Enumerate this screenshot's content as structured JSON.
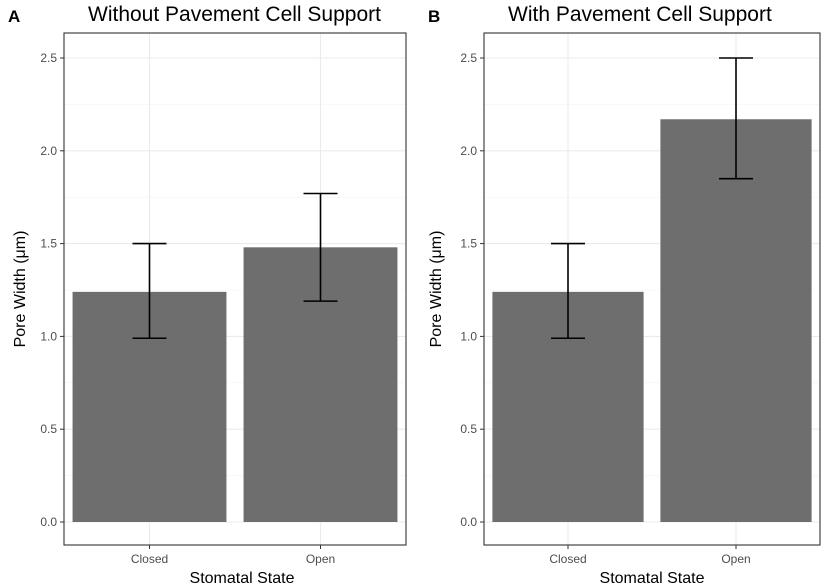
{
  "chart_data": [
    {
      "type": "bar",
      "panel": "A",
      "title": "Without Pavement Cell Support",
      "xlabel": "Stomatal State",
      "ylabel": "Pore Width (μm)",
      "categories": [
        "Closed",
        "Open"
      ],
      "values": [
        1.24,
        1.48
      ],
      "error_low": [
        0.99,
        1.19
      ],
      "error_high": [
        1.5,
        1.77
      ],
      "ylim": [
        0,
        2.62
      ],
      "yticks": [
        0.0,
        0.5,
        1.0,
        1.5,
        2.0,
        2.5
      ],
      "ytick_labels": [
        "0.0",
        "0.5",
        "1.0",
        "1.5",
        "2.0",
        "2.5"
      ],
      "bar_color": "#6e6e6e"
    },
    {
      "type": "bar",
      "panel": "B",
      "title": "With Pavement Cell Support",
      "xlabel": "Stomatal State",
      "ylabel": "Pore Width (μm)",
      "categories": [
        "Closed",
        "Open"
      ],
      "values": [
        1.24,
        2.17
      ],
      "error_low": [
        0.99,
        1.85
      ],
      "error_high": [
        1.5,
        2.5
      ],
      "ylim": [
        0,
        2.62
      ],
      "yticks": [
        0.0,
        0.5,
        1.0,
        1.5,
        2.0,
        2.5
      ],
      "ytick_labels": [
        "0.0",
        "0.5",
        "1.0",
        "1.5",
        "2.0",
        "2.5"
      ],
      "bar_color": "#6e6e6e"
    }
  ]
}
